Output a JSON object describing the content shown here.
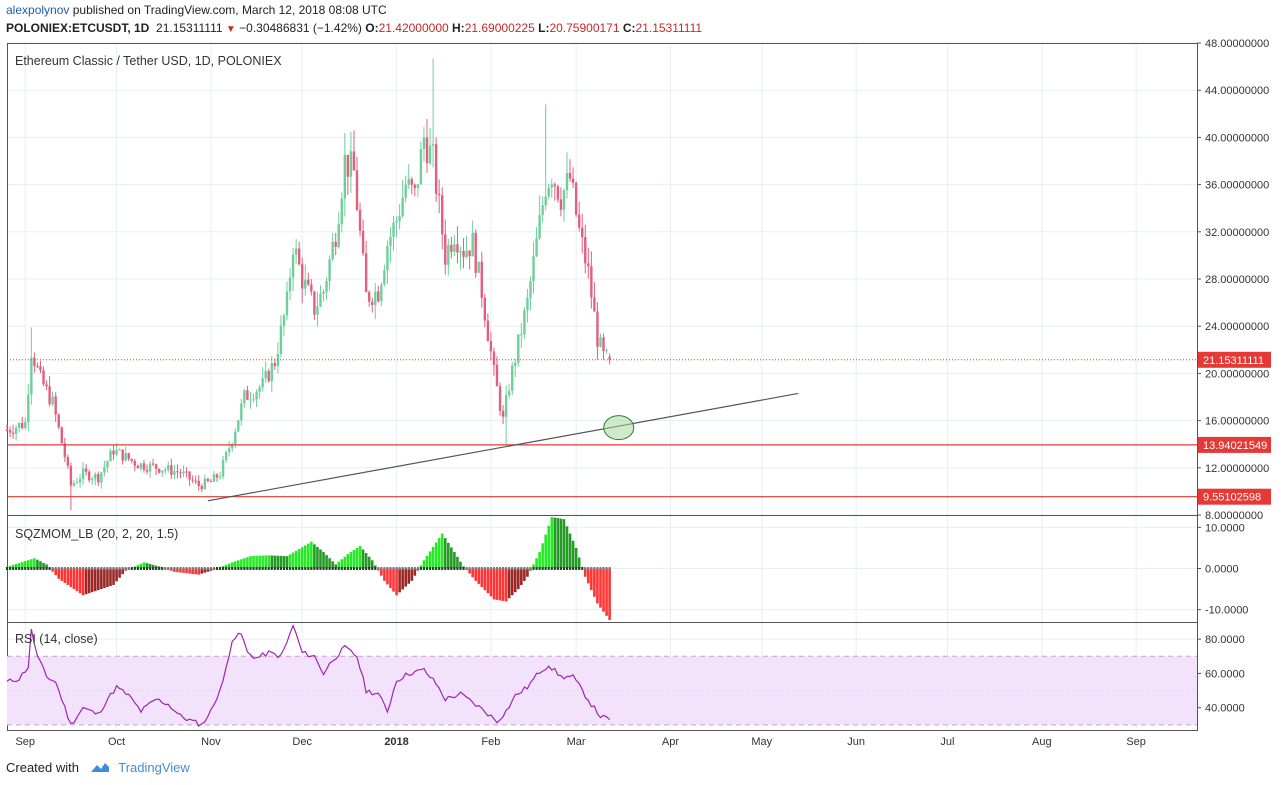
{
  "header": {
    "user": "alexpolynov",
    "published_text": "published on TradingView.com, March 12, 2018 08:08 UTC",
    "symbol": "POLONIEX:ETCUSDT, 1D",
    "last": "21.15311111",
    "change": "−0.30486831 (−1.42%)",
    "o_label": "O:",
    "o": "21.42000000",
    "h_label": "H:",
    "h": "21.69000225",
    "l_label": "L:",
    "l": "20.75900171",
    "c_label": "C:",
    "c": "21.15311111"
  },
  "footer": {
    "created_with": "Created with",
    "brand": "TradingView",
    "icon": "tradingview-cloud-icon"
  },
  "colors": {
    "up": "#6ecf9a",
    "down": "#e0607e",
    "level": "#e53935",
    "trend": "#555555",
    "rsi_line": "#9c27b0",
    "rsi_band": "#f3e2fb",
    "mom_pos_strong": "#00e600",
    "mom_pos_weak": "#008800",
    "mom_neg_strong": "#ff1111",
    "mom_neg_weak": "#880000",
    "grid": "#e8eef4"
  },
  "chart_data": [
    {
      "type": "candlestick",
      "title": "Ethereum Classic / Tether USD, 1D, POLONIEX",
      "ylim": [
        8,
        48
      ],
      "y_ticks": [
        "48.00000000",
        "44.00000000",
        "40.00000000",
        "36.00000000",
        "32.00000000",
        "28.00000000",
        "24.00000000",
        "20.00000000",
        "16.00000000",
        "12.00000000",
        "8.00000000"
      ],
      "y_tick_values": [
        48,
        44,
        40,
        36,
        32,
        28,
        24,
        20,
        16,
        12,
        8
      ],
      "x_labels": [
        "Sep",
        "Oct",
        "Nov",
        "Dec",
        "2018",
        "Feb",
        "Mar",
        "Apr",
        "May",
        "Jun",
        "Jul",
        "Aug",
        "Sep"
      ],
      "x_label_dates": [
        "2017-09-01",
        "2017-10-01",
        "2017-11-01",
        "2017-12-01",
        "2018-01-01",
        "2018-02-01",
        "2018-03-01",
        "2018-04-01",
        "2018-05-01",
        "2018-06-01",
        "2018-07-01",
        "2018-08-01",
        "2018-09-01"
      ],
      "x_start": "2017-08-26",
      "x_end": "2018-09-21",
      "last_date": "2018-03-12",
      "price_path": [
        [
          "2017-08-26",
          15.2
        ],
        [
          "2017-09-01",
          15.8
        ],
        [
          "2017-09-03",
          22.0
        ],
        [
          "2017-09-06",
          19.5
        ],
        [
          "2017-09-10",
          17.5
        ],
        [
          "2017-09-14",
          13.0
        ],
        [
          "2017-09-16",
          10.5
        ],
        [
          "2017-09-20",
          11.5
        ],
        [
          "2017-09-25",
          11.2
        ],
        [
          "2017-09-30",
          13.5
        ],
        [
          "2017-10-08",
          12.3
        ],
        [
          "2017-10-15",
          12.0
        ],
        [
          "2017-10-22",
          11.6
        ],
        [
          "2017-10-28",
          10.5
        ],
        [
          "2017-11-01",
          10.8
        ],
        [
          "2017-11-04",
          11.5
        ],
        [
          "2017-11-08",
          14.5
        ],
        [
          "2017-11-12",
          18.0
        ],
        [
          "2017-11-18",
          19.0
        ],
        [
          "2017-11-22",
          21.0
        ],
        [
          "2017-11-26",
          26.0
        ],
        [
          "2017-11-28",
          31.0
        ],
        [
          "2017-12-01",
          28.0
        ],
        [
          "2017-12-05",
          25.5
        ],
        [
          "2017-12-08",
          27.0
        ],
        [
          "2017-12-12",
          32.0
        ],
        [
          "2017-12-15",
          38.0
        ],
        [
          "2017-12-18",
          37.0
        ],
        [
          "2017-12-22",
          26.5
        ],
        [
          "2017-12-26",
          27.0
        ],
        [
          "2017-12-29",
          31.0
        ],
        [
          "2018-01-01",
          33.0
        ],
        [
          "2018-01-04",
          36.0
        ],
        [
          "2018-01-07",
          35.0
        ],
        [
          "2018-01-10",
          40.0
        ],
        [
          "2018-01-13",
          38.0
        ],
        [
          "2018-01-17",
          30.0
        ],
        [
          "2018-01-20",
          32.0
        ],
        [
          "2018-01-23",
          30.5
        ],
        [
          "2018-01-26",
          31.0
        ],
        [
          "2018-01-29",
          27.0
        ],
        [
          "2018-02-02",
          20.0
        ],
        [
          "2018-02-05",
          16.0
        ],
        [
          "2018-02-07",
          19.0
        ],
        [
          "2018-02-10",
          22.5
        ],
        [
          "2018-02-13",
          26.0
        ],
        [
          "2018-02-16",
          31.0
        ],
        [
          "2018-02-19",
          36.0
        ],
        [
          "2018-02-21",
          37.0
        ],
        [
          "2018-02-24",
          35.0
        ],
        [
          "2018-02-27",
          36.5
        ],
        [
          "2018-03-02",
          32.0
        ],
        [
          "2018-03-05",
          28.5
        ],
        [
          "2018-03-08",
          23.0
        ],
        [
          "2018-03-10",
          21.4
        ],
        [
          "2018-03-12",
          21.15
        ]
      ],
      "extreme_points": [
        [
          "2017-09-03",
          23.9
        ],
        [
          "2017-09-16",
          8.4
        ],
        [
          "2018-01-13",
          46.7
        ],
        [
          "2018-02-06",
          13.9
        ],
        [
          "2018-02-19",
          42.8
        ]
      ],
      "horizontal_levels": [
        {
          "value": 13.94021549,
          "label": "13.94021549"
        },
        {
          "value": 9.55102598,
          "label": "9.55102598"
        }
      ],
      "last_price_line": {
        "value": 21.15311111,
        "label": "21.15311111"
      },
      "trendline": [
        [
          "2017-10-31",
          9.2
        ],
        [
          "2018-05-13",
          18.3
        ]
      ],
      "ellipse_marker": [
        "2018-03-15",
        15.4
      ]
    },
    {
      "type": "histogram",
      "title": "SQZMOM_LB (20, 2, 20, 1.5)",
      "ylim": [
        -13,
        13
      ],
      "y_ticks": [
        "10.0000",
        "0.0000",
        "-10.0000"
      ],
      "y_tick_values": [
        10,
        0,
        -10
      ],
      "momentum_path": [
        [
          "2017-08-26",
          0.4
        ],
        [
          "2017-09-04",
          2.5
        ],
        [
          "2017-09-08",
          1.0
        ],
        [
          "2017-09-12",
          -2.5
        ],
        [
          "2017-09-20",
          -6.5
        ],
        [
          "2017-09-30",
          -4.0
        ],
        [
          "2017-10-04",
          -0.5
        ],
        [
          "2017-10-10",
          1.5
        ],
        [
          "2017-10-15",
          0.5
        ],
        [
          "2017-10-20",
          -0.8
        ],
        [
          "2017-10-28",
          -1.5
        ],
        [
          "2017-11-02",
          -0.3
        ],
        [
          "2017-11-08",
          1.5
        ],
        [
          "2017-11-14",
          3.0
        ],
        [
          "2017-11-20",
          3.2
        ],
        [
          "2017-11-26",
          3.0
        ],
        [
          "2017-12-04",
          6.5
        ],
        [
          "2017-12-08",
          4.0
        ],
        [
          "2017-12-12",
          1.0
        ],
        [
          "2017-12-16",
          3.5
        ],
        [
          "2017-12-20",
          5.5
        ],
        [
          "2017-12-24",
          2.0
        ],
        [
          "2017-12-28",
          -3.0
        ],
        [
          "2018-01-01",
          -6.5
        ],
        [
          "2018-01-06",
          -3.0
        ],
        [
          "2018-01-10",
          2.0
        ],
        [
          "2018-01-16",
          8.5
        ],
        [
          "2018-01-20",
          4.0
        ],
        [
          "2018-01-23",
          0.5
        ],
        [
          "2018-01-27",
          -3.0
        ],
        [
          "2018-02-02",
          -7.5
        ],
        [
          "2018-02-06",
          -8.0
        ],
        [
          "2018-02-10",
          -5.0
        ],
        [
          "2018-02-13",
          -2.0
        ],
        [
          "2018-02-17",
          4.0
        ],
        [
          "2018-02-21",
          12.5
        ],
        [
          "2018-02-25",
          12.0
        ],
        [
          "2018-03-01",
          5.0
        ],
        [
          "2018-03-04",
          -2.0
        ],
        [
          "2018-03-08",
          -8.5
        ],
        [
          "2018-03-12",
          -12.5
        ]
      ],
      "squeeze_dots": "row of dots on the zero line"
    },
    {
      "type": "line",
      "title": "RSI (14, close)",
      "ylim": [
        27,
        90
      ],
      "y_ticks": [
        "80.0000",
        "60.0000",
        "40.0000"
      ],
      "y_tick_values": [
        80,
        60,
        40
      ],
      "band": [
        30,
        70
      ],
      "band_mid": 50,
      "rsi_path": [
        [
          "2017-08-26",
          55
        ],
        [
          "2017-08-30",
          57
        ],
        [
          "2017-09-02",
          64
        ],
        [
          "2017-09-03",
          85
        ],
        [
          "2017-09-05",
          70
        ],
        [
          "2017-09-08",
          58
        ],
        [
          "2017-09-11",
          55
        ],
        [
          "2017-09-14",
          40
        ],
        [
          "2017-09-16",
          30
        ],
        [
          "2017-09-20",
          40
        ],
        [
          "2017-09-25",
          36
        ],
        [
          "2017-09-28",
          45
        ],
        [
          "2017-10-01",
          52
        ],
        [
          "2017-10-05",
          47
        ],
        [
          "2017-10-09",
          38
        ],
        [
          "2017-10-14",
          45
        ],
        [
          "2017-10-18",
          42
        ],
        [
          "2017-10-22",
          35
        ],
        [
          "2017-10-26",
          32
        ],
        [
          "2017-10-29",
          30
        ],
        [
          "2017-11-01",
          38
        ],
        [
          "2017-11-05",
          55
        ],
        [
          "2017-11-08",
          80
        ],
        [
          "2017-11-11",
          83
        ],
        [
          "2017-11-13",
          72
        ],
        [
          "2017-11-16",
          69
        ],
        [
          "2017-11-20",
          72
        ],
        [
          "2017-11-24",
          70
        ],
        [
          "2017-11-26",
          78
        ],
        [
          "2017-11-28",
          88
        ],
        [
          "2017-12-01",
          72
        ],
        [
          "2017-12-05",
          70
        ],
        [
          "2017-12-08",
          60
        ],
        [
          "2017-12-11",
          68
        ],
        [
          "2017-12-15",
          75
        ],
        [
          "2017-12-19",
          70
        ],
        [
          "2017-12-22",
          50
        ],
        [
          "2017-12-26",
          48
        ],
        [
          "2017-12-29",
          38
        ],
        [
          "2018-01-01",
          56
        ],
        [
          "2018-01-05",
          60
        ],
        [
          "2018-01-10",
          62
        ],
        [
          "2018-01-14",
          54
        ],
        [
          "2018-01-17",
          45
        ],
        [
          "2018-01-22",
          48
        ],
        [
          "2018-01-26",
          43
        ],
        [
          "2018-01-30",
          38
        ],
        [
          "2018-02-03",
          32
        ],
        [
          "2018-02-06",
          38
        ],
        [
          "2018-02-09",
          47
        ],
        [
          "2018-02-13",
          52
        ],
        [
          "2018-02-17",
          61
        ],
        [
          "2018-02-20",
          65
        ],
        [
          "2018-02-24",
          58
        ],
        [
          "2018-02-28",
          58
        ],
        [
          "2018-03-03",
          50
        ],
        [
          "2018-03-06",
          42
        ],
        [
          "2018-03-09",
          35
        ],
        [
          "2018-03-12",
          33
        ]
      ]
    }
  ]
}
